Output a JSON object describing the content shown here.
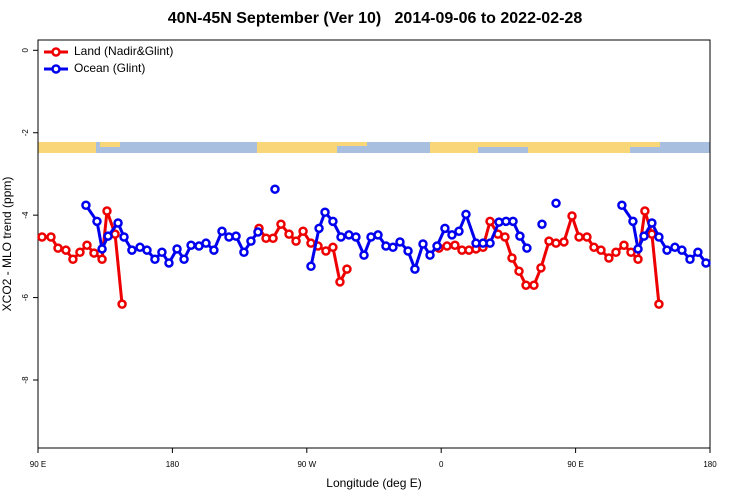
{
  "chart_data": {
    "type": "line",
    "title": "40N-45N September (Ver 10)   2014-09-06 to 2022-02-28",
    "xlabel": "Longitude (deg E)",
    "ylabel": "XCO2 - MLO trend (ppm)",
    "xlim": [
      90,
      540
    ],
    "ylim": [
      -9.65,
      0.25
    ],
    "xticks": [
      {
        "value": 90,
        "label": "90 E"
      },
      180,
      {
        "value": 270,
        "label": "90 W"
      },
      {
        "value": 360,
        "label": "0"
      },
      {
        "value": 450,
        "label": "90 E"
      },
      {
        "value": 540,
        "label": "180"
      }
    ],
    "yticks": [
      0,
      -2,
      -4,
      -6,
      -8
    ],
    "legend": "topleft",
    "series": [
      {
        "name": "Land (Nadir&Glint)",
        "color": "#ee0000",
        "x": [
          92.7,
          98.7,
          103.4,
          108.7,
          113.4,
          118.1,
          122.8,
          127.5,
          132.9,
          136.2,
          141.6,
          146.3,
          200,
          238.0,
          242.7,
          247.4,
          252.7,
          258.1,
          262.8,
          267.5,
          272.8,
          277.5,
          282.8,
          287.5,
          292.2,
          296.9,
          340,
          358.5,
          363.9,
          369.2,
          373.9,
          378.6,
          383.3,
          388.0,
          392.7,
          398.0,
          402.7,
          407.4,
          412.1,
          416.8,
          422.1,
          426.8,
          432.2,
          436.9,
          442.2,
          447.6,
          452.3,
          457.6,
          462.3,
          467.0,
          472.3,
          477.0,
          482.4,
          487.1,
          491.8,
          496.4,
          501.1,
          505.8
        ],
        "values": [
          -4.53,
          -4.53,
          -4.8,
          -4.85,
          -5.07,
          -4.9,
          -4.73,
          -4.92,
          -5.07,
          -3.9,
          -4.46,
          -6.16,
          null,
          -4.32,
          -4.56,
          -4.56,
          -4.22,
          -4.46,
          -4.63,
          -4.39,
          -4.68,
          -4.75,
          -4.87,
          -4.78,
          -5.62,
          -5.31,
          null,
          -4.8,
          -4.75,
          -4.73,
          -4.85,
          -4.85,
          -4.82,
          -4.78,
          -4.15,
          -4.46,
          -4.53,
          -5.04,
          -5.36,
          -5.7,
          -5.7,
          -5.28,
          -4.63,
          -4.68,
          -4.65,
          -4.02,
          -4.53,
          -4.53,
          -4.78,
          -4.85,
          -5.04,
          -4.9,
          -4.73,
          -4.9,
          -5.07,
          -3.9,
          -4.46,
          -6.16
        ]
      },
      {
        "name": "Ocean (Glint)",
        "color": "#0000ee",
        "x": [
          122.1,
          129.5,
          132.9,
          136.9,
          143.6,
          147.6,
          152.9,
          158.3,
          163.0,
          168.3,
          173.0,
          177.7,
          183.1,
          187.8,
          192.5,
          197.8,
          202.5,
          207.8,
          213.2,
          217.9,
          222.6,
          227.9,
          232.6,
          237.3,
          240,
          248.7,
          260,
          272.8,
          278.2,
          282.2,
          287.5,
          292.9,
          298.2,
          302.9,
          308.3,
          313.0,
          317.7,
          323.0,
          327.7,
          332.4,
          337.8,
          342.4,
          347.8,
          352.5,
          357.2,
          362.5,
          367.2,
          371.9,
          376.6,
          383.3,
          388.0,
          392.7,
          398.7,
          403.4,
          408.1,
          412.7,
          417.4,
          420,
          427.5,
          430,
          436.9,
          460,
          481.0,
          488.4,
          491.8,
          495.8,
          501.1,
          505.8,
          511.2,
          516.5,
          521.2,
          526.6,
          531.9,
          537.3
        ],
        "values": [
          -3.76,
          -4.15,
          -4.82,
          -4.51,
          -4.19,
          -4.53,
          -4.85,
          -4.78,
          -4.85,
          -5.07,
          -4.9,
          -5.16,
          -4.82,
          -5.07,
          -4.73,
          -4.75,
          -4.68,
          -4.85,
          -4.39,
          -4.53,
          -4.51,
          -4.9,
          -4.63,
          -4.41,
          null,
          -3.37,
          null,
          -5.24,
          -4.32,
          -3.93,
          -4.15,
          -4.53,
          -4.48,
          -4.53,
          -4.97,
          -4.53,
          -4.48,
          -4.75,
          -4.78,
          -4.65,
          -4.87,
          -5.31,
          -4.7,
          -4.97,
          -4.75,
          -4.32,
          -4.48,
          -4.39,
          -3.98,
          -4.68,
          -4.68,
          -4.68,
          -4.17,
          -4.15,
          -4.15,
          -4.51,
          -4.8,
          null,
          -4.22,
          null,
          -3.71,
          null,
          -3.76,
          -4.15,
          -4.82,
          -4.51,
          -4.19,
          -4.53,
          -4.85,
          -4.78,
          -4.85,
          -5.07,
          -4.9,
          -5.16
        ]
      }
    ]
  }
}
